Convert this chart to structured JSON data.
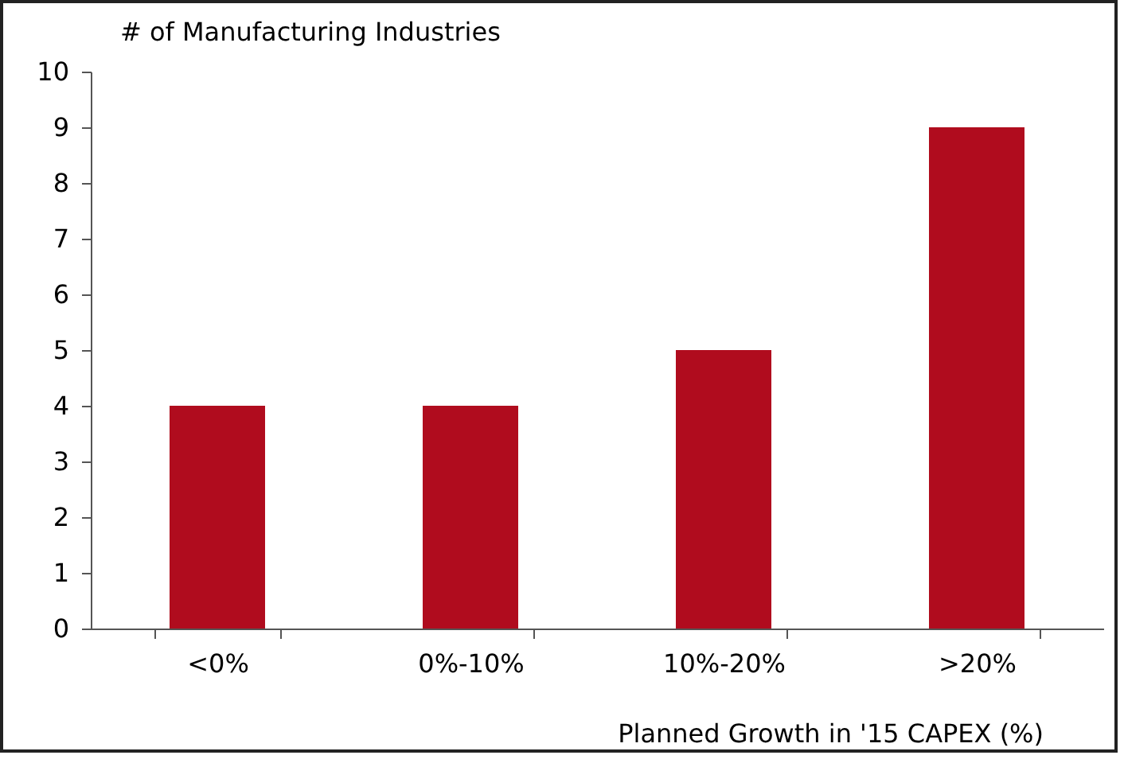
{
  "chart_data": {
    "type": "bar",
    "xlabel": "Planned Growth in '15 CAPEX (%)",
    "ylabel": "# of Manufacturing Industries",
    "categories": [
      "<0%",
      "0%-10%",
      "10%-20%",
      ">20%"
    ],
    "values": [
      4,
      4,
      5,
      9
    ],
    "color": "#b00c1e",
    "ylim": [
      0,
      10
    ],
    "yticks": [
      0,
      1,
      2,
      3,
      4,
      5,
      6,
      7,
      8,
      9,
      10
    ],
    "grid": false
  }
}
